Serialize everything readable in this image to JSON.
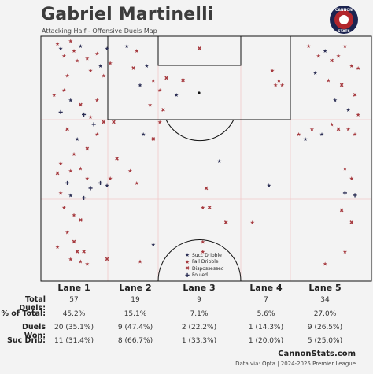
{
  "header": {
    "title": "Gabriel Martinelli",
    "subtitle": "Attacking Half - Offensive Duels Map",
    "logo_text_top": "CANNON",
    "logo_text_bottom": "STATS"
  },
  "legend": [
    {
      "label": "Succ Dribble",
      "glyph": "★",
      "color": "#2c2f55"
    },
    {
      "label": "Fail Dribble",
      "glyph": "★",
      "color": "#a63a3f"
    },
    {
      "label": "Dispossessed",
      "glyph": "✖",
      "color": "#a63a3f"
    },
    {
      "label": "Fouled",
      "glyph": "✚",
      "color": "#2c2f55"
    }
  ],
  "stats": {
    "lanes": [
      "Lane 1",
      "Lane 2",
      "Lane 3",
      "Lane 4",
      "Lane 5"
    ],
    "rows": [
      {
        "label": "Total Duels:",
        "values": [
          "57",
          "19",
          "9",
          "7",
          "34"
        ]
      },
      {
        "label": "% of Total:",
        "values": [
          "45.2%",
          "15.1%",
          "7.1%",
          "5.6%",
          "27.0%"
        ]
      },
      {
        "label": "Duels Won:",
        "values": [
          "20 (35.1%)",
          "9 (47.4%)",
          "2 (22.2%)",
          "1 (14.3%)",
          "9 (26.5%)"
        ]
      },
      {
        "label": "Suc Drib:",
        "values": [
          "11 (31.4%)",
          "8 (66.7%)",
          "1 (33.3%)",
          "1 (20.0%)",
          "5 (25.0%)"
        ]
      }
    ]
  },
  "footer": {
    "brand": "CannonStats.com",
    "source": "Data via: Opta | 2024-2025 Premier League"
  },
  "colors": {
    "success": "#2c2f55",
    "fail": "#a63a3f",
    "pitch_line": "#111111",
    "lane_line": "#f0c8c8",
    "background": "#f3f3f3"
  },
  "chart_data": {
    "type": "scatter",
    "x_label": "",
    "y_label": "",
    "xlim": [
      0,
      100
    ],
    "ylim": [
      0,
      100
    ],
    "points": [
      {
        "x": 5,
        "y": 3,
        "t": "fd"
      },
      {
        "x": 6,
        "y": 5,
        "t": "sd"
      },
      {
        "x": 7,
        "y": 8,
        "t": "fd"
      },
      {
        "x": 9,
        "y": 2,
        "t": "fd"
      },
      {
        "x": 10,
        "y": 6,
        "t": "fd"
      },
      {
        "x": 11,
        "y": 10,
        "t": "fd"
      },
      {
        "x": 12,
        "y": 4,
        "t": "sd"
      },
      {
        "x": 14,
        "y": 9,
        "t": "fd"
      },
      {
        "x": 15,
        "y": 14,
        "t": "fd"
      },
      {
        "x": 17,
        "y": 7,
        "t": "fd"
      },
      {
        "x": 18,
        "y": 12,
        "t": "sd"
      },
      {
        "x": 19,
        "y": 16,
        "t": "fd"
      },
      {
        "x": 20,
        "y": 5,
        "t": "sd"
      },
      {
        "x": 21,
        "y": 11,
        "t": "fd"
      },
      {
        "x": 8,
        "y": 16,
        "t": "fd"
      },
      {
        "x": 4,
        "y": 24,
        "t": "fd"
      },
      {
        "x": 7,
        "y": 22,
        "t": "fd"
      },
      {
        "x": 9,
        "y": 26,
        "t": "sd"
      },
      {
        "x": 12,
        "y": 28,
        "t": "dp"
      },
      {
        "x": 6,
        "y": 31,
        "t": "fl"
      },
      {
        "x": 13,
        "y": 32,
        "t": "fl"
      },
      {
        "x": 15,
        "y": 33,
        "t": "fd"
      },
      {
        "x": 16,
        "y": 36,
        "t": "fl"
      },
      {
        "x": 17,
        "y": 40,
        "t": "fd"
      },
      {
        "x": 19,
        "y": 35,
        "t": "dp"
      },
      {
        "x": 22,
        "y": 35,
        "t": "dp"
      },
      {
        "x": 8,
        "y": 38,
        "t": "dp"
      },
      {
        "x": 11,
        "y": 42,
        "t": "sd"
      },
      {
        "x": 14,
        "y": 46,
        "t": "dp"
      },
      {
        "x": 10,
        "y": 48,
        "t": "fd"
      },
      {
        "x": 6,
        "y": 52,
        "t": "fd"
      },
      {
        "x": 5,
        "y": 56,
        "t": "dp"
      },
      {
        "x": 9,
        "y": 55,
        "t": "fd"
      },
      {
        "x": 12,
        "y": 54,
        "t": "fd"
      },
      {
        "x": 14,
        "y": 58,
        "t": "fd"
      },
      {
        "x": 15,
        "y": 62,
        "t": "fl"
      },
      {
        "x": 18,
        "y": 60,
        "t": "fl"
      },
      {
        "x": 20,
        "y": 61,
        "t": "sd"
      },
      {
        "x": 21,
        "y": 58,
        "t": "fd"
      },
      {
        "x": 8,
        "y": 60,
        "t": "fl"
      },
      {
        "x": 6,
        "y": 64,
        "t": "fd"
      },
      {
        "x": 9,
        "y": 65,
        "t": "sd"
      },
      {
        "x": 13,
        "y": 66,
        "t": "fl"
      },
      {
        "x": 7,
        "y": 70,
        "t": "fd"
      },
      {
        "x": 10,
        "y": 73,
        "t": "fd"
      },
      {
        "x": 12,
        "y": 75,
        "t": "dp"
      },
      {
        "x": 8,
        "y": 80,
        "t": "fd"
      },
      {
        "x": 10,
        "y": 84,
        "t": "dp"
      },
      {
        "x": 11,
        "y": 88,
        "t": "dp"
      },
      {
        "x": 13,
        "y": 88,
        "t": "dp"
      },
      {
        "x": 5,
        "y": 86,
        "t": "fd"
      },
      {
        "x": 9,
        "y": 91,
        "t": "fd"
      },
      {
        "x": 12,
        "y": 92,
        "t": "fd"
      },
      {
        "x": 14,
        "y": 93,
        "t": "fd"
      },
      {
        "x": 20,
        "y": 91,
        "t": "dp"
      },
      {
        "x": 23,
        "y": 50,
        "t": "dp"
      },
      {
        "x": 17,
        "y": 26,
        "t": "fd"
      },
      {
        "x": 26,
        "y": 4,
        "t": "sd"
      },
      {
        "x": 29,
        "y": 6,
        "t": "fd"
      },
      {
        "x": 28,
        "y": 13,
        "t": "dp"
      },
      {
        "x": 32,
        "y": 12,
        "t": "sd"
      },
      {
        "x": 30,
        "y": 20,
        "t": "sd"
      },
      {
        "x": 34,
        "y": 18,
        "t": "fd"
      },
      {
        "x": 36,
        "y": 22,
        "t": "fd"
      },
      {
        "x": 38,
        "y": 17,
        "t": "dp"
      },
      {
        "x": 41,
        "y": 24,
        "t": "sd"
      },
      {
        "x": 43,
        "y": 18,
        "t": "dp"
      },
      {
        "x": 33,
        "y": 28,
        "t": "fd"
      },
      {
        "x": 37,
        "y": 30,
        "t": "dp"
      },
      {
        "x": 31,
        "y": 40,
        "t": "sd"
      },
      {
        "x": 34,
        "y": 42,
        "t": "dp"
      },
      {
        "x": 36,
        "y": 35,
        "t": "fd"
      },
      {
        "x": 27,
        "y": 55,
        "t": "fd"
      },
      {
        "x": 29,
        "y": 60,
        "t": "fd"
      },
      {
        "x": 30,
        "y": 92,
        "t": "fd"
      },
      {
        "x": 34,
        "y": 85,
        "t": "sd"
      },
      {
        "x": 48,
        "y": 5,
        "t": "dp"
      },
      {
        "x": 54,
        "y": 51,
        "t": "sd"
      },
      {
        "x": 50,
        "y": 62,
        "t": "dp"
      },
      {
        "x": 49,
        "y": 70,
        "t": "fd"
      },
      {
        "x": 56,
        "y": 76,
        "t": "dp"
      },
      {
        "x": 64,
        "y": 76,
        "t": "fd"
      },
      {
        "x": 49,
        "y": 84,
        "t": "fd"
      },
      {
        "x": 51,
        "y": 70,
        "t": "dp"
      },
      {
        "x": 49,
        "y": 88,
        "t": "fd"
      },
      {
        "x": 70,
        "y": 14,
        "t": "fd"
      },
      {
        "x": 72,
        "y": 18,
        "t": "fd"
      },
      {
        "x": 73,
        "y": 20,
        "t": "fd"
      },
      {
        "x": 69,
        "y": 61,
        "t": "sd"
      },
      {
        "x": 72,
        "y": 18,
        "t": "fd"
      },
      {
        "x": 71,
        "y": 20,
        "t": "fd"
      },
      {
        "x": 78,
        "y": 40,
        "t": "fd"
      },
      {
        "x": 81,
        "y": 4,
        "t": "fd"
      },
      {
        "x": 84,
        "y": 8,
        "t": "fd"
      },
      {
        "x": 86,
        "y": 6,
        "t": "sd"
      },
      {
        "x": 88,
        "y": 10,
        "t": "dp"
      },
      {
        "x": 90,
        "y": 8,
        "t": "fd"
      },
      {
        "x": 92,
        "y": 4,
        "t": "fd"
      },
      {
        "x": 94,
        "y": 12,
        "t": "fd"
      },
      {
        "x": 96,
        "y": 13,
        "t": "fd"
      },
      {
        "x": 83,
        "y": 15,
        "t": "sd"
      },
      {
        "x": 87,
        "y": 18,
        "t": "fd"
      },
      {
        "x": 91,
        "y": 20,
        "t": "dp"
      },
      {
        "x": 95,
        "y": 24,
        "t": "dp"
      },
      {
        "x": 89,
        "y": 26,
        "t": "sd"
      },
      {
        "x": 93,
        "y": 30,
        "t": "sd"
      },
      {
        "x": 96,
        "y": 32,
        "t": "fd"
      },
      {
        "x": 82,
        "y": 38,
        "t": "fd"
      },
      {
        "x": 85,
        "y": 40,
        "t": "sd"
      },
      {
        "x": 88,
        "y": 36,
        "t": "fd"
      },
      {
        "x": 90,
        "y": 38,
        "t": "dp"
      },
      {
        "x": 93,
        "y": 38,
        "t": "fd"
      },
      {
        "x": 95,
        "y": 40,
        "t": "fd"
      },
      {
        "x": 80,
        "y": 42,
        "t": "sd"
      },
      {
        "x": 92,
        "y": 54,
        "t": "fd"
      },
      {
        "x": 94,
        "y": 58,
        "t": "fd"
      },
      {
        "x": 92,
        "y": 64,
        "t": "fl"
      },
      {
        "x": 95,
        "y": 65,
        "t": "fl"
      },
      {
        "x": 91,
        "y": 71,
        "t": "dp"
      },
      {
        "x": 94,
        "y": 76,
        "t": "dp"
      },
      {
        "x": 86,
        "y": 93,
        "t": "fd"
      },
      {
        "x": 92,
        "y": 88,
        "t": "fd"
      }
    ]
  }
}
